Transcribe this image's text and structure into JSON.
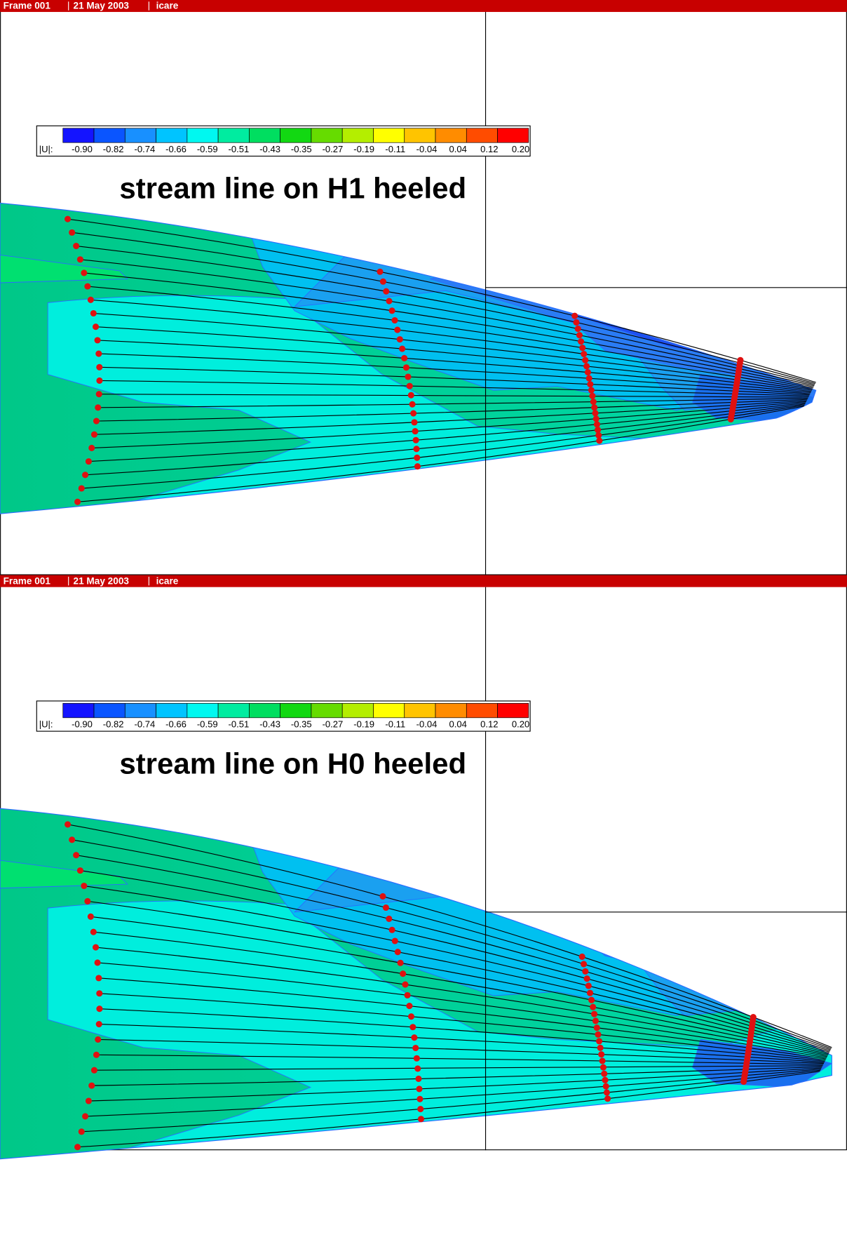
{
  "frames": [
    {
      "header": [
        "Frame 001",
        "21 May 2003",
        "icare"
      ],
      "legend": {
        "label": "|U|:",
        "ticks": [
          "-0.90",
          "-0.82",
          "-0.74",
          "-0.66",
          "-0.59",
          "-0.51",
          "-0.43",
          "-0.35",
          "-0.27",
          "-0.19",
          "-0.11",
          "-0.04",
          "0.04",
          "0.12",
          "0.20"
        ],
        "colors": [
          "#1414ff",
          "#0a55ff",
          "#1890ff",
          "#00c4ff",
          "#00f8f0",
          "#00eca0",
          "#00de60",
          "#12d812",
          "#66dc00",
          "#b4ee00",
          "#ffff00",
          "#ffc400",
          "#ff8c00",
          "#ff4c00",
          "#ff0000"
        ]
      },
      "title": "stream line on H1 heeled"
    },
    {
      "header": [
        "Frame 001",
        "21 May 2003",
        "icare"
      ],
      "legend": {
        "label": "|U|:",
        "ticks": [
          "-0.90",
          "-0.82",
          "-0.74",
          "-0.66",
          "-0.59",
          "-0.51",
          "-0.43",
          "-0.35",
          "-0.27",
          "-0.19",
          "-0.11",
          "-0.04",
          "0.04",
          "0.12",
          "0.20"
        ],
        "colors": [
          "#1414ff",
          "#0a55ff",
          "#1890ff",
          "#00c4ff",
          "#00f8f0",
          "#00eca0",
          "#00de60",
          "#12d812",
          "#66dc00",
          "#b4ee00",
          "#ffff00",
          "#ffc400",
          "#ff8c00",
          "#ff4c00",
          "#ff0000"
        ]
      },
      "title": "stream line on H0 heeled"
    }
  ]
}
